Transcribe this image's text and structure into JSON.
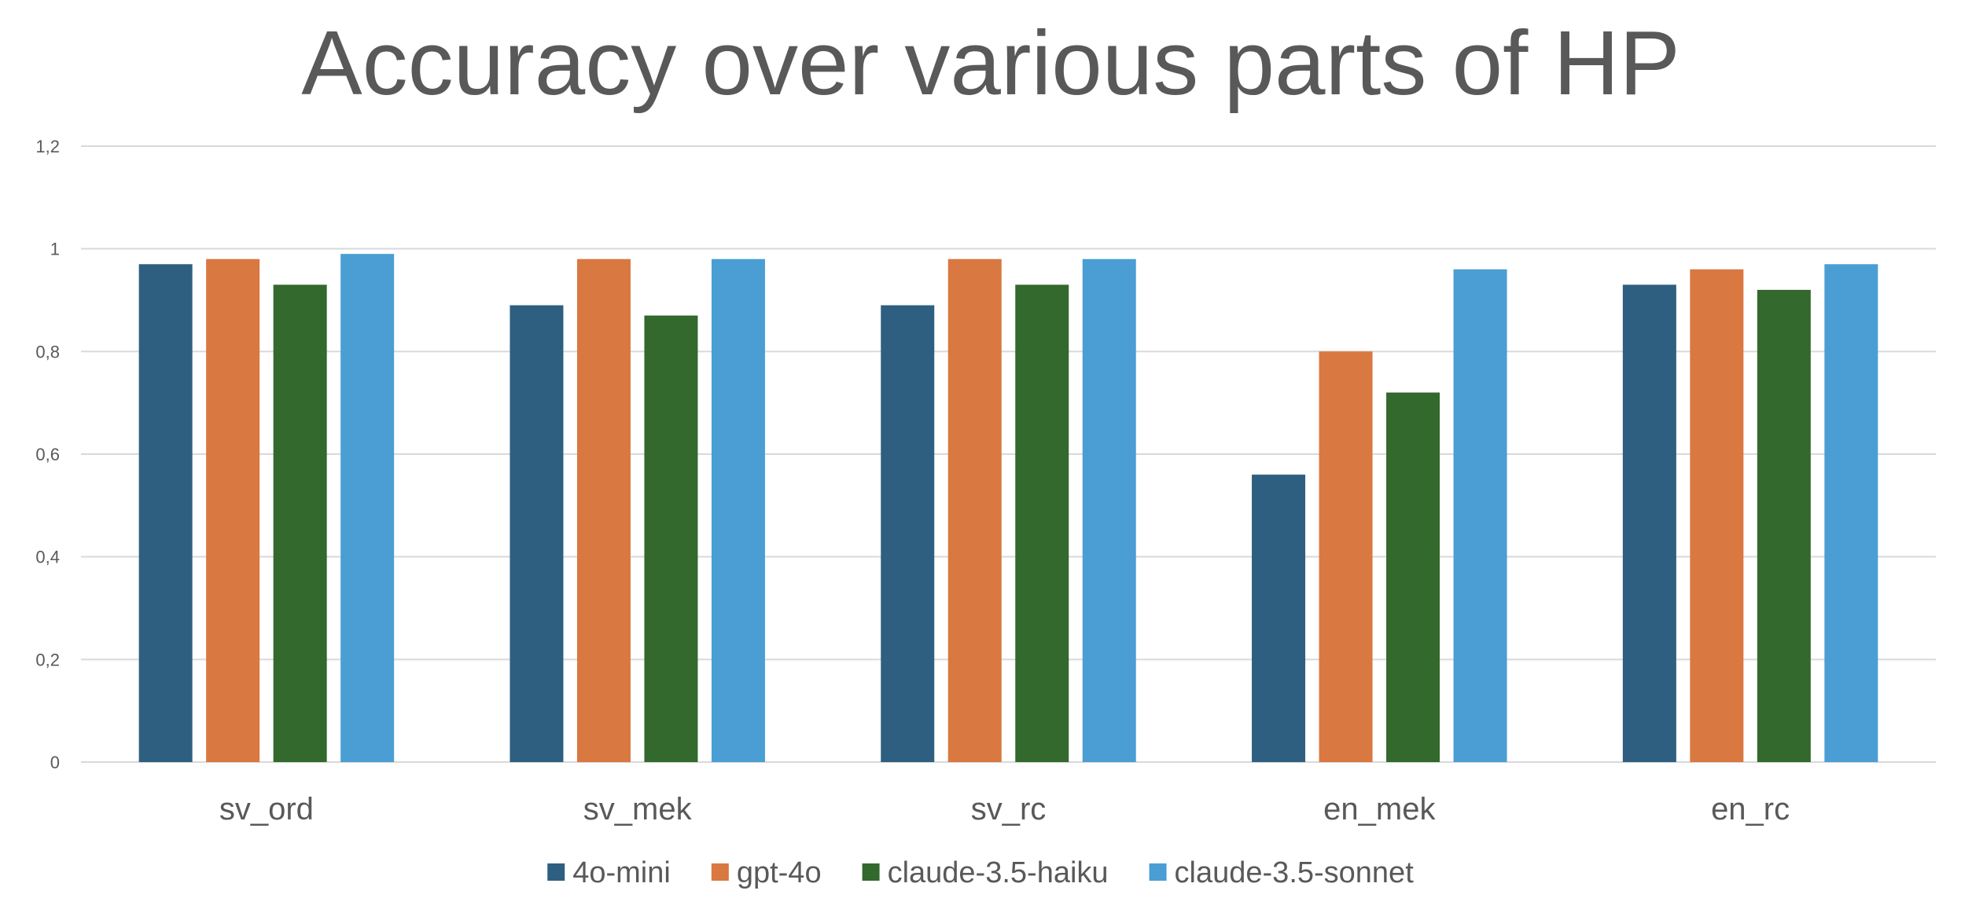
{
  "chart_data": {
    "type": "bar",
    "title": "Accuracy over various parts of HP",
    "xlabel": "",
    "ylabel": "",
    "categories": [
      "sv_ord",
      "sv_mek",
      "sv_rc",
      "en_mek",
      "en_rc"
    ],
    "series": [
      {
        "name": "4o-mini",
        "color": "#2E5F80",
        "values": [
          0.97,
          0.89,
          0.89,
          0.56,
          0.93
        ]
      },
      {
        "name": "gpt-4o",
        "color": "#D97841",
        "values": [
          0.98,
          0.98,
          0.98,
          0.8,
          0.96
        ]
      },
      {
        "name": "claude-3.5-haiku",
        "color": "#33692C",
        "values": [
          0.93,
          0.87,
          0.93,
          0.72,
          0.92
        ]
      },
      {
        "name": "claude-3.5-sonnet",
        "color": "#4A9ED4",
        "values": [
          0.99,
          0.98,
          0.98,
          0.96,
          0.97
        ]
      }
    ],
    "ylim": [
      0,
      1.2
    ],
    "yticks": [
      "0",
      "0,2",
      "0,4",
      "0,6",
      "0,8",
      "1",
      "1,2"
    ],
    "grid": true,
    "legend_position": "bottom"
  }
}
